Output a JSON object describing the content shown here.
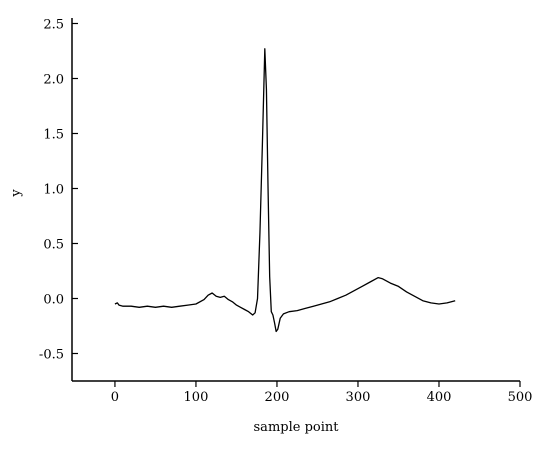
{
  "chart_data": {
    "type": "line",
    "x_label": "sample point",
    "y_label": "y",
    "x": [
      0,
      3,
      5,
      10,
      20,
      30,
      40,
      50,
      60,
      70,
      80,
      90,
      100,
      110,
      115,
      120,
      125,
      130,
      135,
      140,
      145,
      150,
      155,
      160,
      165,
      170,
      173,
      176,
      179,
      182,
      185,
      187,
      189,
      191,
      193,
      195,
      197,
      199,
      201,
      204,
      208,
      215,
      225,
      235,
      245,
      255,
      265,
      275,
      285,
      295,
      305,
      315,
      325,
      330,
      340,
      350,
      360,
      370,
      380,
      390,
      400,
      410,
      420
    ],
    "values": [
      -0.05,
      -0.04,
      -0.06,
      -0.07,
      -0.07,
      -0.08,
      -0.07,
      -0.08,
      -0.07,
      -0.08,
      -0.07,
      -0.06,
      -0.05,
      -0.01,
      0.03,
      0.05,
      0.02,
      0.01,
      0.02,
      -0.01,
      -0.03,
      -0.06,
      -0.08,
      -0.1,
      -0.12,
      -0.15,
      -0.13,
      0.0,
      0.6,
      1.4,
      2.27,
      1.9,
      1.0,
      0.2,
      -0.12,
      -0.15,
      -0.22,
      -0.3,
      -0.28,
      -0.18,
      -0.14,
      -0.12,
      -0.11,
      -0.09,
      -0.07,
      -0.05,
      -0.03,
      0.0,
      0.03,
      0.07,
      0.11,
      0.15,
      0.19,
      0.18,
      0.14,
      0.11,
      0.06,
      0.02,
      -0.02,
      -0.04,
      -0.05,
      -0.04,
      -0.02
    ],
    "color": "#000000",
    "xlim": [
      -53,
      500
    ],
    "ylim": [
      -0.75,
      2.55
    ],
    "xticks": [
      0,
      100,
      200,
      300,
      400,
      500
    ],
    "yticks": [
      -0.5,
      {
        "value": 0,
        "label": "0.0"
      },
      0.5,
      {
        "value": 1,
        "label": "1.0"
      },
      1.5,
      {
        "value": 2,
        "label": "2.0"
      },
      2.5
    ]
  }
}
